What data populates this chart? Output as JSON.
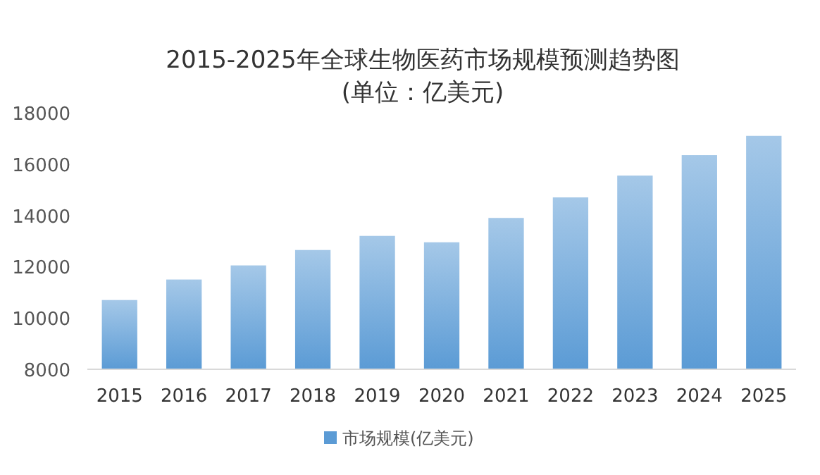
{
  "chart_data": {
    "type": "bar",
    "title": "2015-2025年全球生物医药市场规模预测趋势图",
    "subtitle": "(单位：亿美元)",
    "categories": [
      "2015",
      "2016",
      "2017",
      "2018",
      "2019",
      "2020",
      "2021",
      "2022",
      "2023",
      "2024",
      "2025"
    ],
    "series": [
      {
        "name": "市场规模(亿美元)",
        "color": "#5b9bd5",
        "values": [
          10700,
          11500,
          12050,
          12650,
          13200,
          12950,
          13900,
          14700,
          15550,
          16350,
          17100
        ]
      }
    ],
    "ylim": [
      8000,
      18000
    ],
    "yticks": [
      8000,
      10000,
      12000,
      14000,
      16000,
      18000
    ],
    "grid": false,
    "legend": "bottom"
  }
}
